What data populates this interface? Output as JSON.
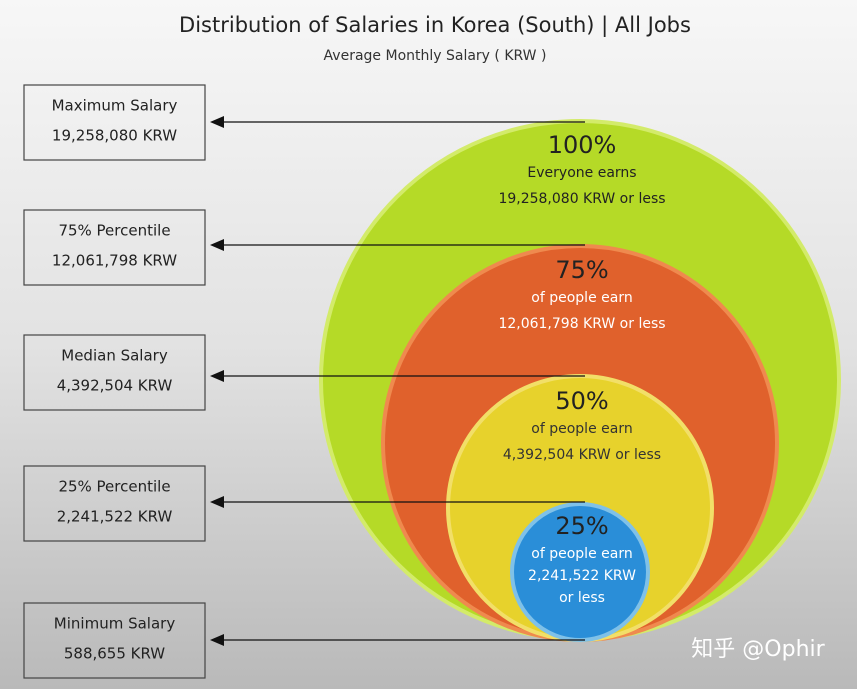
{
  "title": "Distribution of Salaries in Korea (South) | All Jobs",
  "subtitle": "Average Monthly Salary ( KRW )",
  "labels": [
    {
      "name": "Maximum Salary",
      "value": "19,258,080 KRW"
    },
    {
      "name": "75% Percentile",
      "value": "12,061,798 KRW"
    },
    {
      "name": "Median Salary",
      "value": "4,392,504 KRW"
    },
    {
      "name": "25% Percentile",
      "value": "2,241,522 KRW"
    },
    {
      "name": "Minimum Salary",
      "value": "588,655 KRW"
    }
  ],
  "circles": [
    {
      "percent": "100%",
      "lines": [
        "Everyone earns",
        "19,258,080 KRW or less"
      ]
    },
    {
      "percent": "75%",
      "lines": [
        "of people earn",
        "12,061,798 KRW or less"
      ]
    },
    {
      "percent": "50%",
      "lines": [
        "of people earn",
        "4,392,504 KRW or less"
      ]
    },
    {
      "percent": "25%",
      "lines": [
        "of people earn",
        "2,241,522 KRW",
        "or less"
      ]
    }
  ],
  "watermark": "知乎 @Ophir"
}
